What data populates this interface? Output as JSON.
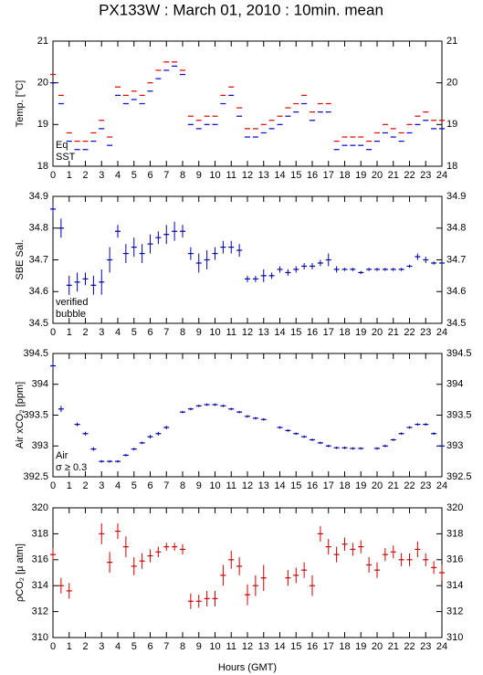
{
  "title": "PX133W : March 01, 2010 : 10min. mean",
  "xlabel": "Hours (GMT)",
  "chart_data": [
    {
      "type": "scatter",
      "ylabel": "Temp. [°C]",
      "xlim": [
        0,
        24
      ],
      "xticks": [
        0,
        1,
        2,
        3,
        4,
        5,
        6,
        7,
        8,
        9,
        10,
        11,
        12,
        13,
        14,
        15,
        16,
        17,
        18,
        19,
        20,
        21,
        22,
        23,
        24
      ],
      "ylim": [
        18,
        21
      ],
      "yticks": [
        18,
        19,
        20,
        21
      ],
      "x": [
        0,
        0.5,
        1,
        1.5,
        2,
        2.5,
        3,
        3.5,
        4,
        4.5,
        5,
        5.5,
        6,
        6.5,
        7,
        7.5,
        8,
        8.5,
        9,
        9.5,
        10,
        10.5,
        11,
        11.5,
        12,
        12.5,
        13,
        13.5,
        14,
        14.5,
        15,
        15.5,
        16,
        16.5,
        17,
        17.5,
        18,
        18.5,
        19,
        19.5,
        20,
        20.5,
        21,
        21.5,
        22,
        22.5,
        23,
        23.5,
        24
      ],
      "series": [
        {
          "name": "Eq",
          "color": "#dd0000",
          "values": [
            20.2,
            19.7,
            18.8,
            18.6,
            18.6,
            18.8,
            19.1,
            18.7,
            19.9,
            19.7,
            19.8,
            19.7,
            20.0,
            20.3,
            20.5,
            20.5,
            20.3,
            19.2,
            19.1,
            19.2,
            19.2,
            19.7,
            19.9,
            19.4,
            18.9,
            18.9,
            19.0,
            19.1,
            19.2,
            19.4,
            19.5,
            19.7,
            19.3,
            19.5,
            19.5,
            18.6,
            18.7,
            18.7,
            18.7,
            18.6,
            18.8,
            19.0,
            18.9,
            18.8,
            19.0,
            19.2,
            19.3,
            19.1,
            19.1
          ]
        },
        {
          "name": "SST",
          "color": "#0000cc",
          "values": [
            20.0,
            19.5,
            18.6,
            18.4,
            18.4,
            18.6,
            18.9,
            18.5,
            19.7,
            19.5,
            19.6,
            19.5,
            19.8,
            20.1,
            20.3,
            20.4,
            20.2,
            19.0,
            18.9,
            19.0,
            19.0,
            19.5,
            19.7,
            19.2,
            18.7,
            18.7,
            18.8,
            18.9,
            19.0,
            19.2,
            19.3,
            19.5,
            19.1,
            19.3,
            19.3,
            18.4,
            18.5,
            18.5,
            18.5,
            18.4,
            18.6,
            18.8,
            18.7,
            18.6,
            18.8,
            19.0,
            19.1,
            18.9,
            18.9
          ]
        }
      ]
    },
    {
      "type": "errorbar",
      "ylabel": "SBE Sal.",
      "xlim": [
        0,
        24
      ],
      "xticks": [
        0,
        1,
        2,
        3,
        4,
        5,
        6,
        7,
        8,
        9,
        10,
        11,
        12,
        13,
        14,
        15,
        16,
        17,
        18,
        19,
        20,
        21,
        22,
        23,
        24
      ],
      "ylim": [
        34.5,
        34.9
      ],
      "yticks": [
        34.5,
        34.6,
        34.7,
        34.8,
        34.9
      ],
      "annotations": [
        {
          "text": "bubble",
          "color": "#cc33cc"
        }
      ],
      "x": [
        0,
        0.5,
        1,
        1.5,
        2,
        2.5,
        3,
        3.5,
        4,
        4.5,
        5,
        5.5,
        6,
        6.5,
        7,
        7.5,
        8,
        8.5,
        9,
        9.5,
        10,
        10.5,
        11,
        11.5,
        12,
        12.5,
        13,
        13.5,
        14,
        14.5,
        15,
        15.5,
        16,
        16.5,
        17,
        17.5,
        18,
        18.5,
        19,
        19.5,
        20,
        20.5,
        21,
        21.5,
        22,
        22.5,
        23,
        23.5,
        24
      ],
      "series": [
        {
          "name": "verified",
          "color": "#0000aa",
          "values": [
            34.86,
            34.8,
            34.62,
            34.63,
            34.64,
            34.62,
            34.63,
            34.7,
            34.79,
            34.72,
            34.74,
            34.72,
            34.75,
            34.77,
            34.78,
            34.79,
            34.79,
            34.72,
            34.69,
            34.7,
            34.72,
            34.74,
            34.74,
            34.73,
            34.64,
            34.64,
            34.65,
            34.65,
            34.67,
            34.66,
            34.67,
            34.68,
            34.68,
            34.69,
            34.7,
            34.67,
            34.67,
            34.67,
            34.66,
            34.67,
            34.67,
            34.67,
            34.67,
            34.67,
            34.68,
            34.71,
            34.7,
            34.69,
            34.69
          ],
          "errors": [
            0.02,
            0.03,
            0.03,
            0.03,
            0.02,
            0.03,
            0.04,
            0.04,
            0.02,
            0.03,
            0.03,
            0.03,
            0.03,
            0.02,
            0.03,
            0.03,
            0.02,
            0.02,
            0.03,
            0.03,
            0.02,
            0.02,
            0.02,
            0.02,
            0.01,
            0.01,
            0.02,
            0.01,
            0.01,
            0.01,
            0.01,
            0.01,
            0.01,
            0.01,
            0.02,
            0.01,
            0.005,
            0.005,
            0.005,
            0.005,
            0.005,
            0.005,
            0.005,
            0.005,
            0.005,
            0.01,
            0.01,
            0.005,
            0.005
          ]
        }
      ]
    },
    {
      "type": "errorbar",
      "ylabel": "Air xCO₂ [ppm]",
      "xlim": [
        0,
        24
      ],
      "xticks": [
        0,
        1,
        2,
        3,
        4,
        5,
        6,
        7,
        8,
        9,
        10,
        11,
        12,
        13,
        14,
        15,
        16,
        17,
        18,
        19,
        20,
        21,
        22,
        23,
        24
      ],
      "ylim": [
        392.5,
        394.5
      ],
      "yticks": [
        392.5,
        393,
        393.5,
        394,
        394.5
      ],
      "annotations": [
        {
          "text": "σ ≥ 0.3",
          "color": "#cc33cc"
        }
      ],
      "x": [
        0,
        0.5,
        1,
        1.5,
        2,
        2.5,
        3,
        3.5,
        4,
        4.5,
        5,
        5.5,
        6,
        6.5,
        7,
        7.5,
        8,
        8.5,
        9,
        9.5,
        10,
        10.5,
        11,
        11.5,
        12,
        12.5,
        13,
        13.5,
        14,
        14.5,
        15,
        15.5,
        16,
        16.5,
        17,
        17.5,
        18,
        18.5,
        19,
        19.5,
        20,
        20.5,
        21,
        21.5,
        22,
        22.5,
        23,
        23.5,
        24
      ],
      "series": [
        {
          "name": "Air",
          "color": "#0000aa",
          "values": [
            394.3,
            393.6,
            null,
            393.35,
            393.2,
            392.95,
            392.75,
            392.75,
            392.75,
            392.85,
            392.95,
            393.05,
            393.15,
            393.2,
            393.3,
            null,
            393.55,
            393.6,
            393.65,
            393.67,
            393.67,
            393.65,
            393.6,
            393.55,
            393.48,
            393.45,
            393.43,
            null,
            393.3,
            393.25,
            393.2,
            393.15,
            393.1,
            393.05,
            393.0,
            392.97,
            392.97,
            392.96,
            392.96,
            null,
            392.96,
            393.0,
            393.1,
            393.2,
            393.3,
            393.35,
            393.35,
            393.2,
            393.0
          ],
          "errors": [
            0.05,
            0.05,
            null,
            0.03,
            0.03,
            0.03,
            0.02,
            0.02,
            0.02,
            0.02,
            0.02,
            0.02,
            0.03,
            0.03,
            0.03,
            null,
            0.02,
            0.02,
            0.02,
            0.02,
            0.02,
            0.02,
            0.02,
            0.02,
            0.02,
            0.02,
            0.02,
            null,
            0.02,
            0.02,
            0.02,
            0.02,
            0.02,
            0.02,
            0.02,
            0.02,
            0.02,
            0.02,
            0.02,
            null,
            0.02,
            0.02,
            0.02,
            0.02,
            0.02,
            0.02,
            0.02,
            0.02,
            0.03
          ]
        }
      ]
    },
    {
      "type": "errorbar",
      "ylabel": "ρCO₂ [μ atm]",
      "xlim": [
        0,
        24
      ],
      "xticks": [
        0,
        1,
        2,
        3,
        4,
        5,
        6,
        7,
        8,
        9,
        10,
        11,
        12,
        13,
        14,
        15,
        16,
        17,
        18,
        19,
        20,
        21,
        22,
        23,
        24
      ],
      "ylim": [
        310,
        320
      ],
      "yticks": [
        310,
        312,
        314,
        316,
        318,
        320
      ],
      "x": [
        0,
        0.5,
        1,
        1.5,
        2,
        2.5,
        3,
        3.5,
        4,
        4.5,
        5,
        5.5,
        6,
        6.5,
        7,
        7.5,
        8,
        8.5,
        9,
        9.5,
        10,
        10.5,
        11,
        11.5,
        12,
        12.5,
        13,
        13.5,
        14,
        14.5,
        15,
        15.5,
        16,
        16.5,
        17,
        17.5,
        18,
        18.5,
        19,
        19.5,
        20,
        20.5,
        21,
        21.5,
        22,
        22.5,
        23,
        23.5,
        24
      ],
      "series": [
        {
          "name": "pCO2",
          "color": "#cc0000",
          "values": [
            316.4,
            314.0,
            313.6,
            null,
            null,
            null,
            318.0,
            315.8,
            318.2,
            317.0,
            315.5,
            315.9,
            316.3,
            316.6,
            317.0,
            317.0,
            316.8,
            312.8,
            312.8,
            313.0,
            313.0,
            314.8,
            316.0,
            315.5,
            313.3,
            314.0,
            314.6,
            null,
            null,
            314.6,
            314.8,
            315.2,
            314.0,
            318.0,
            317.0,
            316.4,
            317.2,
            316.8,
            317.0,
            315.6,
            315.2,
            316.4,
            316.6,
            316.0,
            316.0,
            316.8,
            316.0,
            315.4,
            315.0
          ],
          "errors": [
            0.5,
            0.6,
            0.6,
            null,
            null,
            null,
            0.8,
            0.8,
            0.6,
            0.8,
            0.7,
            0.6,
            0.5,
            0.4,
            0.3,
            0.3,
            0.4,
            0.6,
            0.5,
            0.6,
            0.6,
            0.8,
            0.7,
            0.7,
            0.8,
            0.8,
            1.0,
            null,
            null,
            0.6,
            0.6,
            0.6,
            0.8,
            0.6,
            0.6,
            0.6,
            0.5,
            0.5,
            0.5,
            0.6,
            0.6,
            0.5,
            0.5,
            0.5,
            0.5,
            0.6,
            0.5,
            0.5,
            0.6
          ]
        }
      ]
    }
  ]
}
